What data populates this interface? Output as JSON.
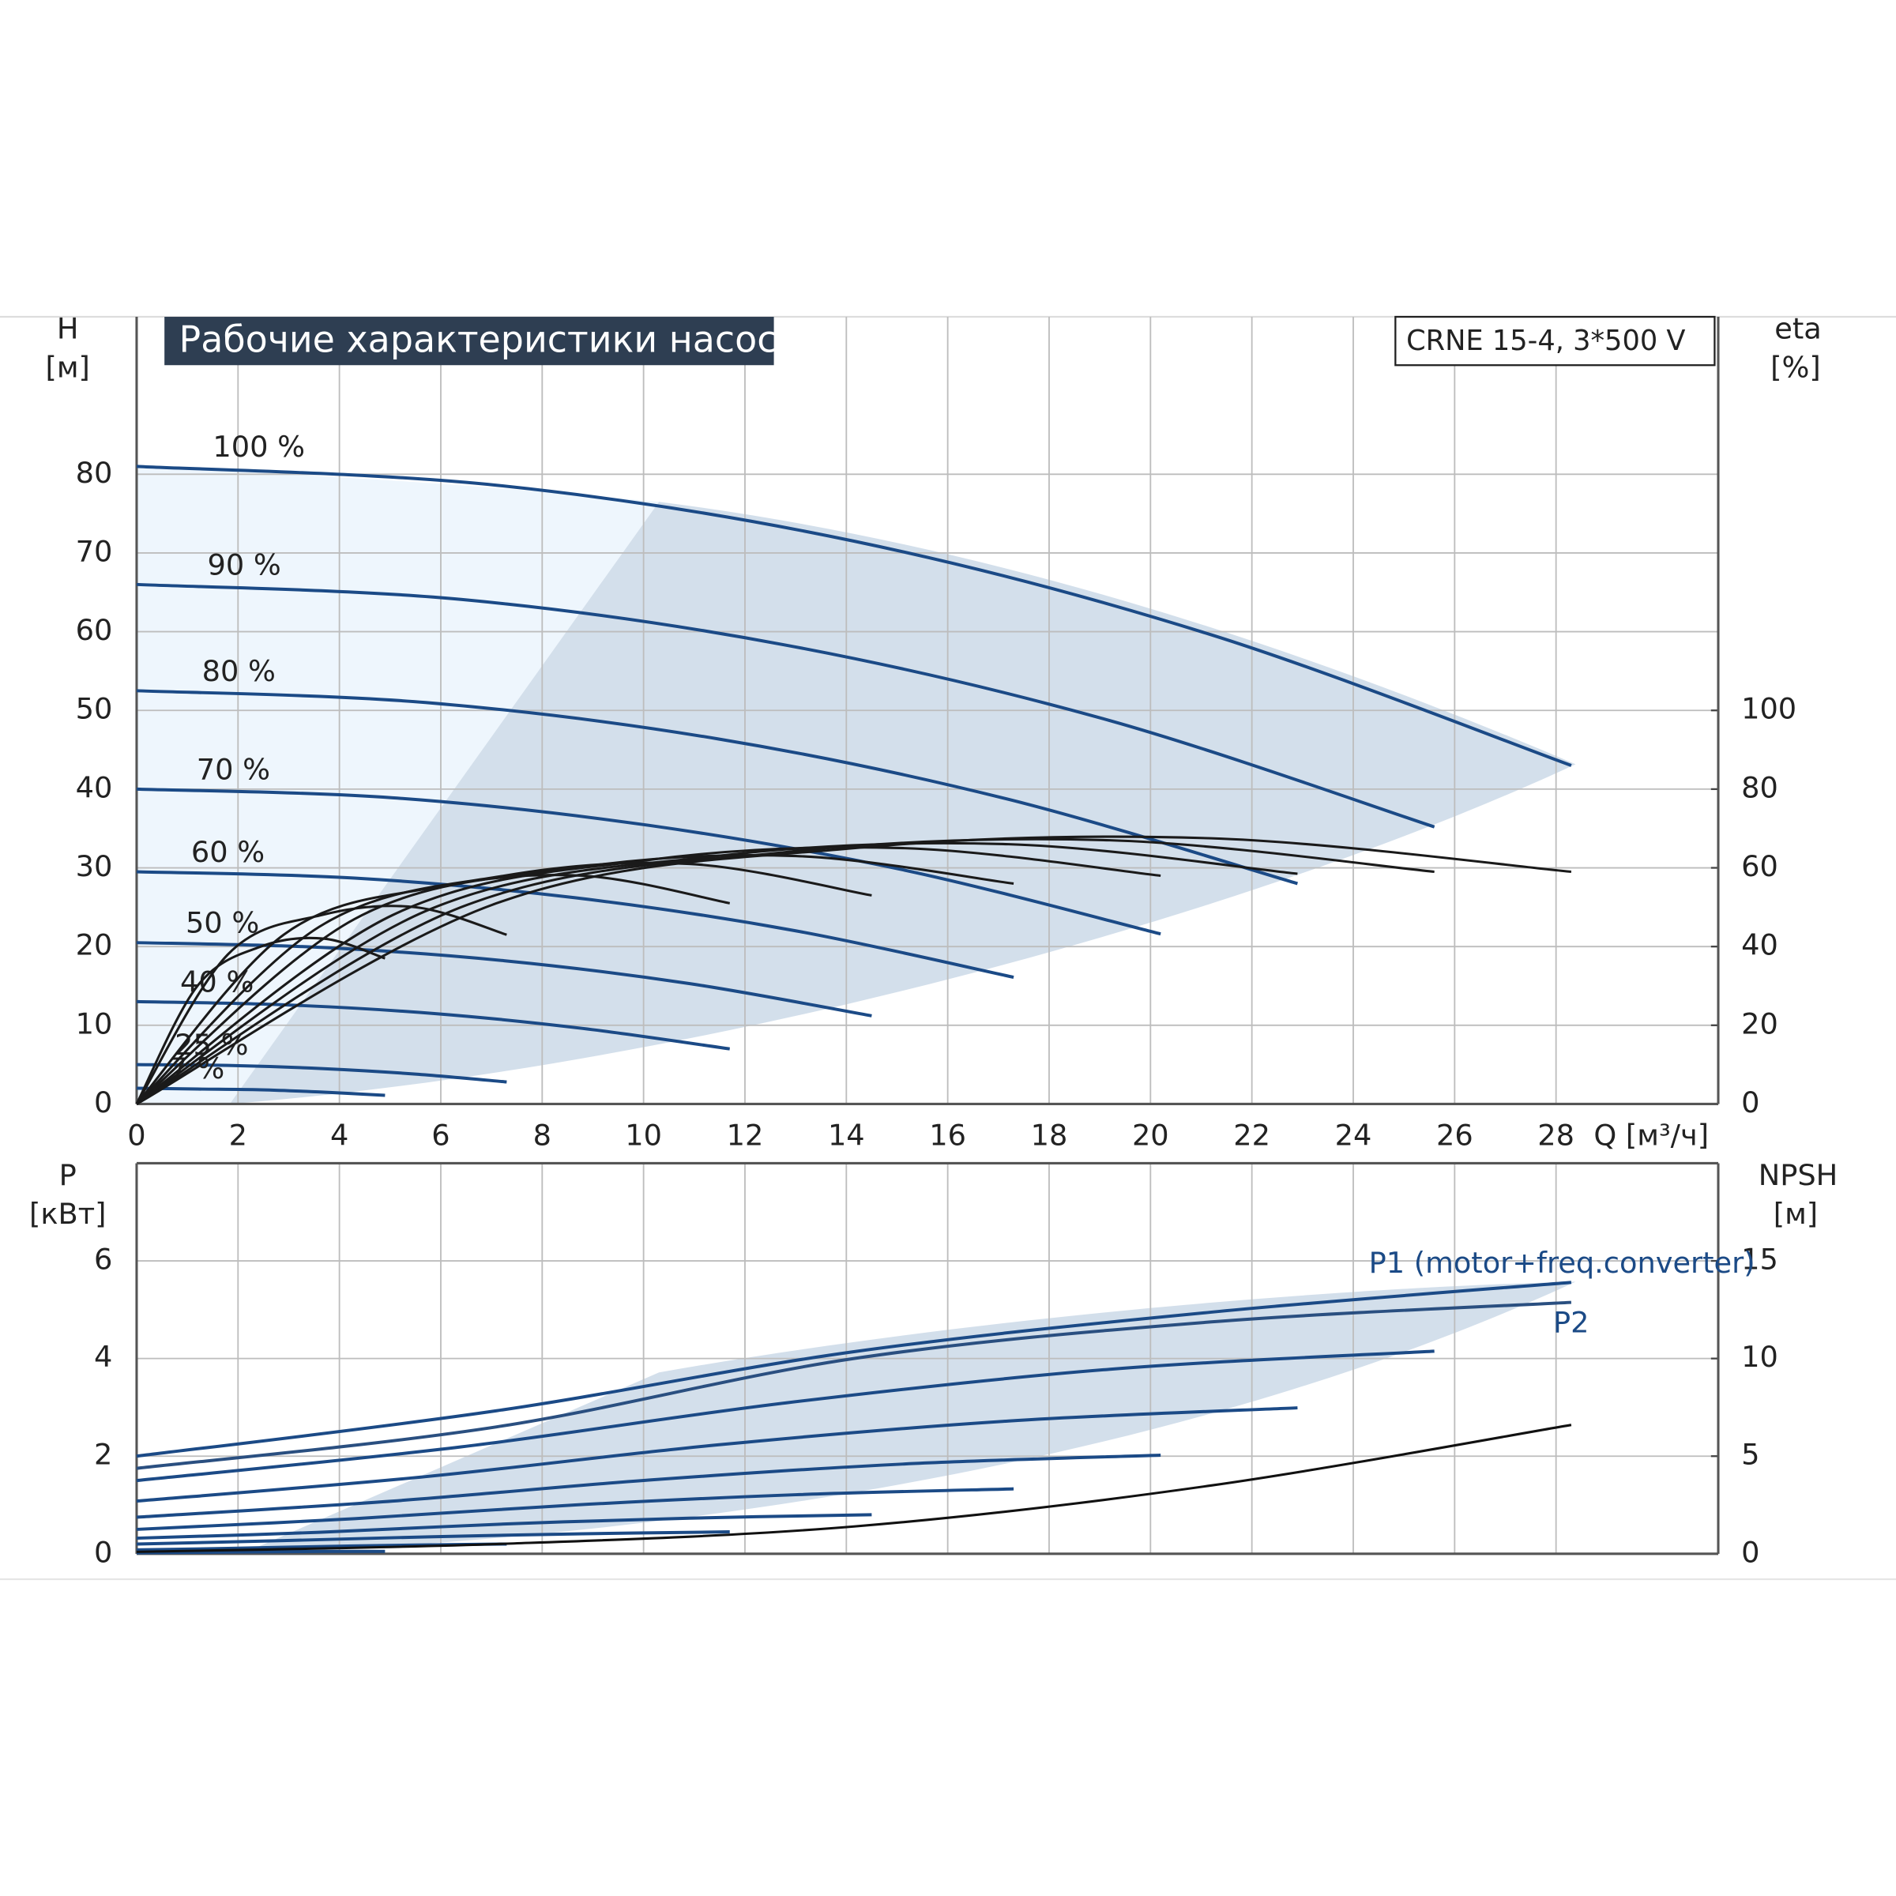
{
  "chart_data": [
    {
      "type": "line",
      "title": "Рабочие характеристики насоса",
      "annotation": "CRNE 15-4, 3*500 V",
      "ylabel": "H",
      "yunit": "[м]",
      "y2label": "eta",
      "y2unit": "[%]",
      "xlabel": "Q [м³/ч]",
      "xlim": [
        0,
        31.2
      ],
      "ylim": [
        0,
        100
      ],
      "y2lim": [
        0,
        200
      ],
      "xticks": [
        0,
        2,
        4,
        6,
        8,
        10,
        12,
        14,
        16,
        18,
        20,
        22,
        24,
        26,
        28
      ],
      "yticks": [
        0,
        10,
        20,
        30,
        40,
        50,
        60,
        70,
        80
      ],
      "y2ticks": [
        0,
        20,
        40,
        60,
        80,
        100
      ],
      "grid": true,
      "series": [
        {
          "name": "100 %",
          "color": "#1b4a86",
          "x": [
            0,
            7.1,
            14.15,
            21.2,
            28.3
          ],
          "values": [
            81,
            78.6,
            71.5,
            59.6,
            43
          ]
        },
        {
          "name": "90 %",
          "color": "#1b4a86",
          "x": [
            0,
            6.4,
            12.8,
            19.2,
            25.6
          ],
          "values": [
            66,
            64.1,
            58.3,
            48.7,
            35.2
          ]
        },
        {
          "name": "80 %",
          "color": "#1b4a86",
          "x": [
            0,
            5.7,
            11.45,
            17.2,
            22.9
          ],
          "values": [
            52.5,
            51,
            46.4,
            38.7,
            28
          ]
        },
        {
          "name": "70 %",
          "color": "#1b4a86",
          "x": [
            0,
            5.05,
            10.1,
            15.15,
            20.2
          ],
          "values": [
            40,
            38.9,
            35.4,
            29.7,
            21.6
          ]
        },
        {
          "name": "60 %",
          "color": "#1b4a86",
          "x": [
            0,
            4.3,
            8.65,
            13,
            17.3
          ],
          "values": [
            29.5,
            28.7,
            26.2,
            22,
            16.1
          ]
        },
        {
          "name": "50 %",
          "color": "#1b4a86",
          "x": [
            0,
            3.6,
            7.25,
            10.9,
            14.5
          ],
          "values": [
            20.5,
            19.9,
            18.2,
            15.3,
            11.2
          ]
        },
        {
          "name": "40 %",
          "color": "#1b4a86",
          "x": [
            0,
            2.9,
            5.85,
            8.8,
            11.7
          ],
          "values": [
            13,
            12.6,
            11.5,
            9.6,
            7
          ]
        },
        {
          "name": "25 %",
          "color": "#1b4a86",
          "x": [
            0,
            1.8,
            3.65,
            5.5,
            7.3
          ],
          "values": [
            5,
            4.9,
            4.5,
            3.8,
            2.8
          ]
        },
        {
          "name": "7 %",
          "color": "#1b4a86",
          "x": [
            0,
            1.2,
            2.45,
            3.7,
            4.9
          ],
          "values": [
            2,
            1.9,
            1.8,
            1.5,
            1.1
          ]
        },
        {
          "axis": "y2",
          "color": "#1a1a1a",
          "x": [
            0,
            7.1,
            14.15,
            21.2,
            28.3
          ],
          "values": [
            0,
            51,
            65,
            67.5,
            59
          ]
        },
        {
          "axis": "y2",
          "color": "#1a1a1a",
          "x": [
            0,
            6.4,
            12.8,
            19.2,
            25.6
          ],
          "values": [
            0,
            50,
            64,
            67,
            59
          ]
        },
        {
          "axis": "y2",
          "color": "#1a1a1a",
          "x": [
            0,
            5.7,
            11.45,
            17.2,
            22.9
          ],
          "values": [
            0,
            49,
            63,
            66,
            58.5
          ]
        },
        {
          "axis": "y2",
          "color": "#1a1a1a",
          "x": [
            0,
            5.05,
            10.1,
            15.15,
            20.2
          ],
          "values": [
            0,
            48,
            62,
            65,
            58
          ]
        },
        {
          "axis": "y2",
          "color": "#1a1a1a",
          "x": [
            0,
            4.3,
            8.65,
            13,
            17.3
          ],
          "values": [
            0,
            47,
            60,
            63,
            56
          ]
        },
        {
          "axis": "y2",
          "color": "#1a1a1a",
          "x": [
            0,
            3.6,
            7.25,
            10.9,
            14.5
          ],
          "values": [
            0,
            45,
            58,
            61,
            53
          ]
        },
        {
          "axis": "y2",
          "color": "#1a1a1a",
          "x": [
            0,
            2.9,
            5.85,
            8.8,
            11.7
          ],
          "values": [
            0,
            43,
            55,
            58,
            51
          ]
        },
        {
          "axis": "y2",
          "color": "#1a1a1a",
          "x": [
            0,
            1.8,
            3.65,
            5.5,
            7.3
          ],
          "values": [
            0,
            38,
            48,
            50,
            43
          ]
        },
        {
          "axis": "y2",
          "color": "#1a1a1a",
          "x": [
            0,
            1.2,
            2.45,
            3.7,
            4.9
          ],
          "values": [
            0,
            30,
            40,
            42,
            37
          ]
        }
      ]
    },
    {
      "type": "line",
      "ylabel": "P",
      "yunit": "[кВт]",
      "y2label": "NPSH",
      "y2unit": "[м]",
      "xlim": [
        0,
        31.2
      ],
      "ylim": [
        0,
        8
      ],
      "y2lim": [
        0,
        20
      ],
      "xticks": [
        0,
        2,
        4,
        6,
        8,
        10,
        12,
        14,
        16,
        18,
        20,
        22,
        24,
        26,
        28
      ],
      "yticks": [
        0,
        2,
        4,
        6
      ],
      "y2ticks": [
        0,
        5,
        10,
        15
      ],
      "grid": true,
      "series": [
        {
          "name": "P1 (motor+freq.converter)",
          "color": "#1b4a86",
          "x": [
            0,
            7.1,
            14.15,
            21.2,
            28.3
          ],
          "values": [
            2.0,
            2.93,
            4.14,
            4.95,
            5.56
          ]
        },
        {
          "color": "#1b4a86",
          "x": [
            0,
            6.4,
            12.8,
            19.2,
            25.6
          ],
          "values": [
            1.5,
            2.19,
            3.09,
            3.78,
            4.15
          ]
        },
        {
          "color": "#1b4a86",
          "x": [
            0,
            5.7,
            11.45,
            17.2,
            22.9
          ],
          "values": [
            1.08,
            1.58,
            2.23,
            2.72,
            2.99
          ]
        },
        {
          "color": "#1b4a86",
          "x": [
            0,
            5.05,
            10.1,
            15.15,
            20.2
          ],
          "values": [
            0.75,
            1.08,
            1.51,
            1.84,
            2.02
          ]
        },
        {
          "color": "#1b4a86",
          "x": [
            0,
            4.3,
            8.65,
            13,
            17.3
          ],
          "values": [
            0.5,
            0.72,
            1.0,
            1.21,
            1.33
          ]
        },
        {
          "color": "#1b4a86",
          "x": [
            0,
            3.6,
            7.25,
            10.9,
            14.5
          ],
          "values": [
            0.32,
            0.44,
            0.61,
            0.73,
            0.8
          ]
        },
        {
          "color": "#1b4a86",
          "x": [
            0,
            2.9,
            5.85,
            8.8,
            11.7
          ],
          "values": [
            0.2,
            0.27,
            0.35,
            0.41,
            0.45
          ]
        },
        {
          "color": "#1b4a86",
          "x": [
            0,
            1.8,
            3.65,
            5.5,
            7.3
          ],
          "values": [
            0.08,
            0.11,
            0.15,
            0.18,
            0.2
          ]
        },
        {
          "color": "#1b4a86",
          "x": [
            0,
            1.2,
            2.45,
            3.7,
            4.9
          ],
          "values": [
            0.02,
            0.03,
            0.04,
            0.05,
            0.05
          ]
        },
        {
          "axis": "y2",
          "color": "#111111",
          "x": [
            0,
            7.1,
            14.15,
            21.2,
            28.3
          ],
          "values": [
            0.1,
            0.5,
            1.4,
            3.5,
            6.6
          ]
        },
        {
          "name": "P2",
          "color": "#2a4f80",
          "x": [
            0,
            7.1,
            14.15,
            21.2,
            28.3
          ],
          "values": [
            1.75,
            2.6,
            4.0,
            4.75,
            5.15
          ]
        }
      ]
    }
  ]
}
